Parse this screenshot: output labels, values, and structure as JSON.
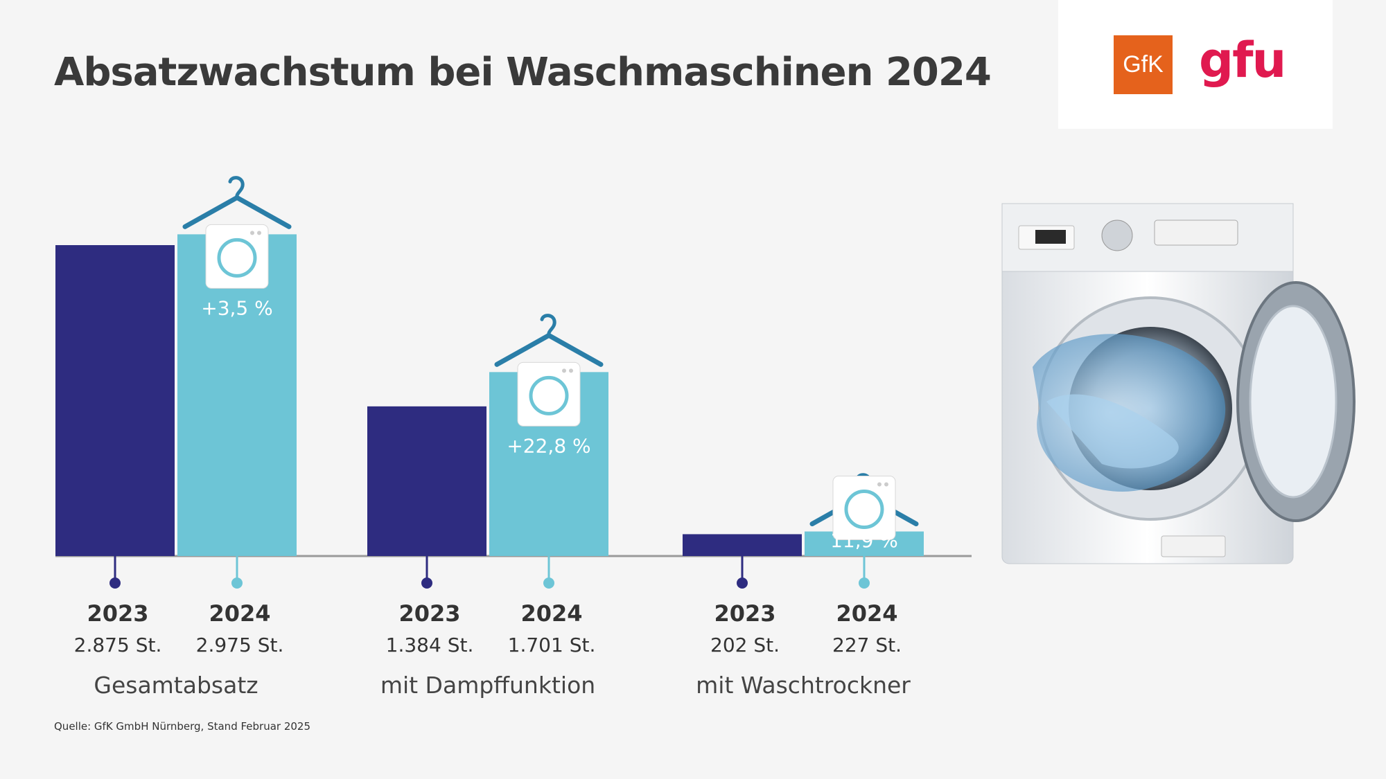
{
  "title": "Absatzwachstum bei Waschmaschinen 2024",
  "logos": {
    "gfk": "GfK",
    "gfu": "gfu"
  },
  "source": "Quelle: GfK GmbH Nürnberg, Stand Februar 2025",
  "colors": {
    "y2023": "#2e2c80",
    "y2024": "#6dc5d6",
    "hanger": "#2a7ea8",
    "baseline": "#999999"
  },
  "chart_data": {
    "type": "bar",
    "categories": [
      "Gesamtabsatz",
      "mit Dampffunktion",
      "mit Waschtrockner"
    ],
    "series": [
      {
        "name": "2023",
        "values": [
          2875,
          1384,
          202
        ],
        "value_labels": [
          "2.875 St.",
          "1.384 St.",
          "202 St."
        ]
      },
      {
        "name": "2024",
        "values": [
          2975,
          1701,
          227
        ],
        "value_labels": [
          "2.975 St.",
          "1.701 St.",
          "227 St."
        ]
      }
    ],
    "growth_labels": [
      "+3,5 %",
      "+22,8 %",
      "11,9 %"
    ],
    "ylim": [
      0,
      3300
    ],
    "grid": false,
    "legend": "none"
  }
}
